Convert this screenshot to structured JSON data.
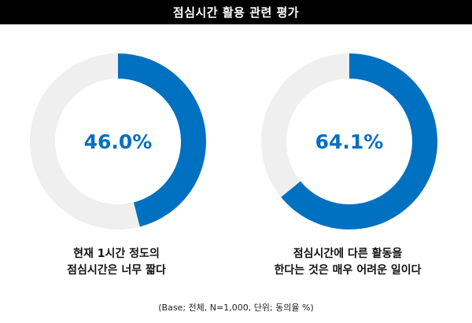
{
  "chart_data": {
    "type": "pie",
    "title": "점심시간 활용 관련 평가",
    "footnote": "(Base; 전체, N=1,000, 단위; 동의율 %)",
    "charts": [
      {
        "value": 46.0,
        "value_label": "46.0%",
        "caption_lines": [
          "현재 1시간 정도의",
          "점심시간은 너무 짧다"
        ]
      },
      {
        "value": 64.1,
        "value_label": "64.1%",
        "caption_lines": [
          "점심시간에 다른 활동을",
          "한다는 것은 매우 어려운 일이다"
        ]
      }
    ],
    "colors": {
      "value": "#0070c0",
      "remainder": "#efefef",
      "title_bg": "#000000",
      "title_text": "#ffffff"
    }
  }
}
